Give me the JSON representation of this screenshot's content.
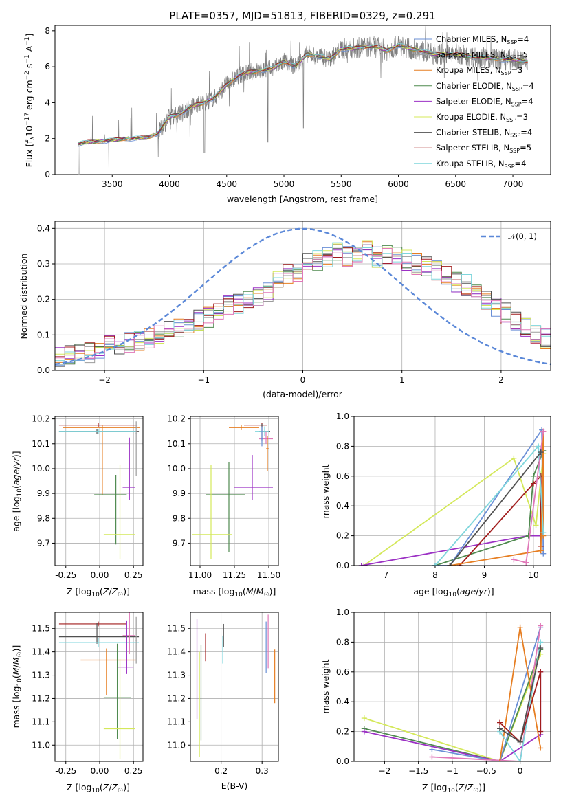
{
  "title": "PLATE=0357, MJD=51813, FIBERID=0329, z=0.291",
  "colors": {
    "chabrier_miles": "#6a8fd6",
    "salpeter_miles": "#9c9c9c",
    "kroupa_miles": "#e67e22",
    "chabrier_elodie": "#4f8a4f",
    "salpeter_elodie": "#9b30c4",
    "kroupa_elodie": "#d4e85a",
    "chabrier_stelib": "#505050",
    "salpeter_stelib": "#a11c1c",
    "kroupa_stelib": "#7fd6dc",
    "pink": "#e078b8",
    "data": "#808080",
    "gauss": "#5b88d8"
  },
  "legend_spectrum": [
    {
      "model": "Chabrier MILES, N",
      "sub": "SSP",
      "eq": "=4",
      "color": "#6a8fd6"
    },
    {
      "model": "Salpeter MILES, N",
      "sub": "SSP",
      "eq": "=5",
      "color": "#9c9c9c"
    },
    {
      "model": "Kroupa MILES, N",
      "sub": "SSP",
      "eq": "=3",
      "color": "#e67e22"
    },
    {
      "model": "Chabrier ELODIE, N",
      "sub": "SSP",
      "eq": "=4",
      "color": "#4f8a4f"
    },
    {
      "model": "Salpeter ELODIE, N",
      "sub": "SSP",
      "eq": "=4",
      "color": "#9b30c4"
    },
    {
      "model": "Kroupa ELODIE, N",
      "sub": "SSP",
      "eq": "=3",
      "color": "#d4e85a"
    },
    {
      "model": "Chabrier STELIB, N",
      "sub": "SSP",
      "eq": "=4",
      "color": "#505050"
    },
    {
      "model": "Salpeter STELIB, N",
      "sub": "SSP",
      "eq": "=5",
      "color": "#a11c1c"
    },
    {
      "model": "Kroupa STELIB, N",
      "sub": "SSP",
      "eq": "=4",
      "color": "#7fd6dc"
    }
  ],
  "legend_hist": {
    "label": "𝒩(0, 1)"
  },
  "chart_data": [
    {
      "type": "line",
      "title": "PLATE=0357, MJD=51813, FIBERID=0329, z=0.291",
      "xlabel": "wavelength [Angstrom, rest frame]",
      "ylabel": "Flux [f_λ 10⁻¹⁷ erg cm⁻² s⁻¹ A⁻¹]",
      "xlim": [
        3000,
        7330
      ],
      "ylim": [
        0,
        8.3
      ],
      "xticks": [
        3500,
        4000,
        4500,
        5000,
        5500,
        6000,
        6500,
        7000
      ],
      "yticks": [
        0,
        2,
        4,
        6,
        8
      ],
      "model_continuum": {
        "x": [
          3200,
          3300,
          3400,
          3500,
          3600,
          3700,
          3800,
          3900,
          4000,
          4100,
          4200,
          4300,
          4400,
          4500,
          4600,
          4700,
          4800,
          4900,
          5000,
          5100,
          5200,
          5300,
          5400,
          5500,
          5600,
          5700,
          5800,
          5900,
          6000,
          6100,
          6200,
          6300,
          6400,
          6500,
          6600,
          6700,
          6800,
          6900,
          7000,
          7100
        ],
        "y": [
          1.7,
          1.8,
          1.85,
          1.9,
          2.0,
          2.0,
          2.05,
          2.3,
          3.2,
          3.4,
          3.8,
          4.0,
          4.3,
          5.0,
          5.5,
          5.7,
          5.8,
          5.9,
          6.3,
          6.0,
          6.7,
          6.6,
          6.4,
          7.0,
          7.0,
          7.1,
          7.1,
          6.9,
          7.2,
          7.0,
          6.9,
          6.7,
          6.7,
          6.7,
          6.6,
          6.5,
          6.5,
          6.4,
          6.4,
          6.3
        ]
      }
    },
    {
      "type": "bar",
      "xlabel": "(data-model)/error",
      "ylabel": "Normed distribution",
      "xlim": [
        -2.5,
        2.5
      ],
      "ylim": [
        0,
        0.42
      ],
      "xticks": [
        -2,
        -1,
        0,
        1,
        2
      ],
      "yticks": [
        0.0,
        0.1,
        0.2,
        0.3,
        0.4
      ],
      "bin_width": 0.1,
      "bin_edges": [
        -2.5,
        2.5
      ],
      "histogram_envelope": [
        0.035,
        0.04,
        0.045,
        0.05,
        0.06,
        0.07,
        0.075,
        0.08,
        0.085,
        0.09,
        0.1,
        0.11,
        0.12,
        0.13,
        0.14,
        0.15,
        0.17,
        0.18,
        0.19,
        0.2,
        0.21,
        0.22,
        0.25,
        0.27,
        0.28,
        0.3,
        0.31,
        0.32,
        0.33,
        0.32,
        0.33,
        0.34,
        0.32,
        0.33,
        0.32,
        0.31,
        0.3,
        0.29,
        0.28,
        0.27,
        0.25,
        0.24,
        0.22,
        0.2,
        0.18,
        0.16,
        0.14,
        0.12,
        0.1,
        0.09
      ]
    },
    {
      "type": "scatter",
      "xlabel": "Z [log₁₀(Z/Z☉)]",
      "ylabel": "age  [log₁₀(age/yr)]",
      "xlim": [
        -0.33,
        0.32
      ],
      "ylim": [
        9.61,
        10.21
      ],
      "xticks": [
        -0.25,
        0.0,
        0.25
      ],
      "yticks": [
        9.7,
        9.8,
        9.9,
        10.0,
        10.1,
        10.2
      ],
      "errorbars": [
        {
          "series": "Salpeter STELIB",
          "x": -0.01,
          "xerr": [
            0.29,
            0.29
          ],
          "y": 10.175,
          "yerr": [
            0.01,
            0.01
          ]
        },
        {
          "series": "Kroupa MILES",
          "x": 0.02,
          "xerr": [
            0.29,
            0.28
          ],
          "y": 10.165,
          "yerr": [
            0.27,
            0.01
          ]
        },
        {
          "series": "Chabrier STELIB",
          "x": -0.02,
          "xerr": [
            0.28,
            0.31
          ],
          "y": 10.15,
          "yerr": [
            0.01,
            0.01
          ]
        },
        {
          "series": "Kroupa STELIB",
          "x": -0.01,
          "xerr": [
            0.29,
            0.28
          ],
          "y": 10.15,
          "yerr": [
            0.01,
            0.01
          ]
        },
        {
          "series": "Chabrier ELODIE",
          "x": 0.12,
          "xerr": [
            0.16,
            0.08
          ],
          "y": 9.895,
          "yerr": [
            0.2,
            0.08
          ]
        },
        {
          "series": "Salpeter ELODIE",
          "x": 0.22,
          "xerr": [
            0.05,
            0.04
          ],
          "y": 9.925,
          "yerr": [
            0.05,
            0.2
          ]
        },
        {
          "series": "Kroupa ELODIE",
          "x": 0.15,
          "xerr": [
            0.12,
            0.11
          ],
          "y": 9.735,
          "yerr": [
            0.1,
            0.28
          ]
        },
        {
          "series": "Salpeter MILES",
          "x": 0.27,
          "xerr": [
            0.01,
            0.01
          ],
          "y": 10.14,
          "yerr": [
            0.17,
            0.05
          ]
        }
      ]
    },
    {
      "type": "scatter",
      "xlabel": "mass [log₁₀(M/M☉)]",
      "ylabel": "",
      "xlim": [
        10.93,
        11.57
      ],
      "ylim": [
        9.61,
        10.21
      ],
      "xticks": [
        11.0,
        11.25,
        11.5
      ],
      "yticks": [
        9.7,
        9.8,
        9.9,
        10.0,
        10.1,
        10.2
      ]
    },
    {
      "type": "line",
      "xlabel": "age  [log₁₀(age/yr)]",
      "ylabel": "mass weight",
      "xlim": [
        6.35,
        10.35
      ],
      "ylim": [
        0,
        1
      ],
      "xticks": [
        7,
        8,
        9,
        10
      ],
      "yticks": [
        0.0,
        0.2,
        0.4,
        0.6,
        0.8,
        1.0
      ],
      "series": [
        {
          "name": "Chabrier MILES",
          "x": [
            8.0,
            8.3,
            10.17
          ],
          "y": [
            0.0,
            0.0,
            0.91
          ]
        },
        {
          "name": "Kroupa ELODIE",
          "x": [
            6.55,
            9.6,
            10.05
          ],
          "y": [
            0.0,
            0.72,
            0.27
          ]
        },
        {
          "name": "Salpeter ELODIE",
          "x": [
            6.5,
            9.9,
            10.15
          ],
          "y": [
            0.0,
            0.2,
            0.2
          ]
        },
        {
          "name": "Salpeter STELIB",
          "x": [
            8.5,
            10.15
          ],
          "y": [
            0.0,
            0.6
          ]
        },
        {
          "name": "Kroupa MILES",
          "x": [
            8.3,
            10.15
          ],
          "y": [
            0.0,
            0.9
          ]
        }
      ]
    },
    {
      "type": "scatter",
      "xlabel": "Z [log₁₀(Z/Z☉)]",
      "ylabel": "mass [log₁₀(M/M☉)]",
      "xlim": [
        -0.33,
        0.32
      ],
      "ylim": [
        10.93,
        11.57
      ],
      "xticks": [
        -0.25,
        0.0,
        0.25
      ],
      "yticks": [
        11.0,
        11.1,
        11.2,
        11.3,
        11.4,
        11.5
      ]
    },
    {
      "type": "scatter",
      "xlabel": "E(B-V)",
      "ylabel": "",
      "xlim": [
        0.125,
        0.34
      ],
      "ylim": [
        10.93,
        11.57
      ],
      "xticks": [
        0.1,
        0.2,
        0.3
      ],
      "yticks": [
        11.0,
        11.1,
        11.2,
        11.3,
        11.4,
        11.5
      ]
    },
    {
      "type": "line",
      "xlabel": "Z [log₁₀(Z/Z☉)]",
      "ylabel": "mass weight",
      "xlim": [
        -2.45,
        0.45
      ],
      "ylim": [
        0,
        1
      ],
      "xticks": [
        -2.0,
        -1.5,
        -1.0,
        -0.5,
        0.0
      ],
      "yticks": [
        0.0,
        0.2,
        0.4,
        0.6,
        0.8,
        1.0
      ],
      "series": [
        {
          "name": "Kroupa ELODIE",
          "x": [
            -2.3,
            -0.3,
            0.3
          ],
          "y": [
            0.29,
            0.0,
            0.72
          ]
        },
        {
          "name": "Chabrier ELODIE",
          "x": [
            -2.3,
            -0.3,
            0.3
          ],
          "y": [
            0.22,
            0.0,
            0.75
          ]
        },
        {
          "name": "Salpeter ELODIE",
          "x": [
            -2.3,
            -0.3,
            0.3
          ],
          "y": [
            0.2,
            0.0,
            0.2
          ]
        },
        {
          "name": "Kroupa MILES",
          "x": [
            -0.3,
            0.0,
            0.3
          ],
          "y": [
            0.0,
            0.9,
            0.1
          ]
        },
        {
          "name": "pink",
          "x": [
            -1.3,
            0.0,
            0.3
          ],
          "y": [
            0.03,
            0.0,
            0.91
          ]
        }
      ]
    }
  ]
}
